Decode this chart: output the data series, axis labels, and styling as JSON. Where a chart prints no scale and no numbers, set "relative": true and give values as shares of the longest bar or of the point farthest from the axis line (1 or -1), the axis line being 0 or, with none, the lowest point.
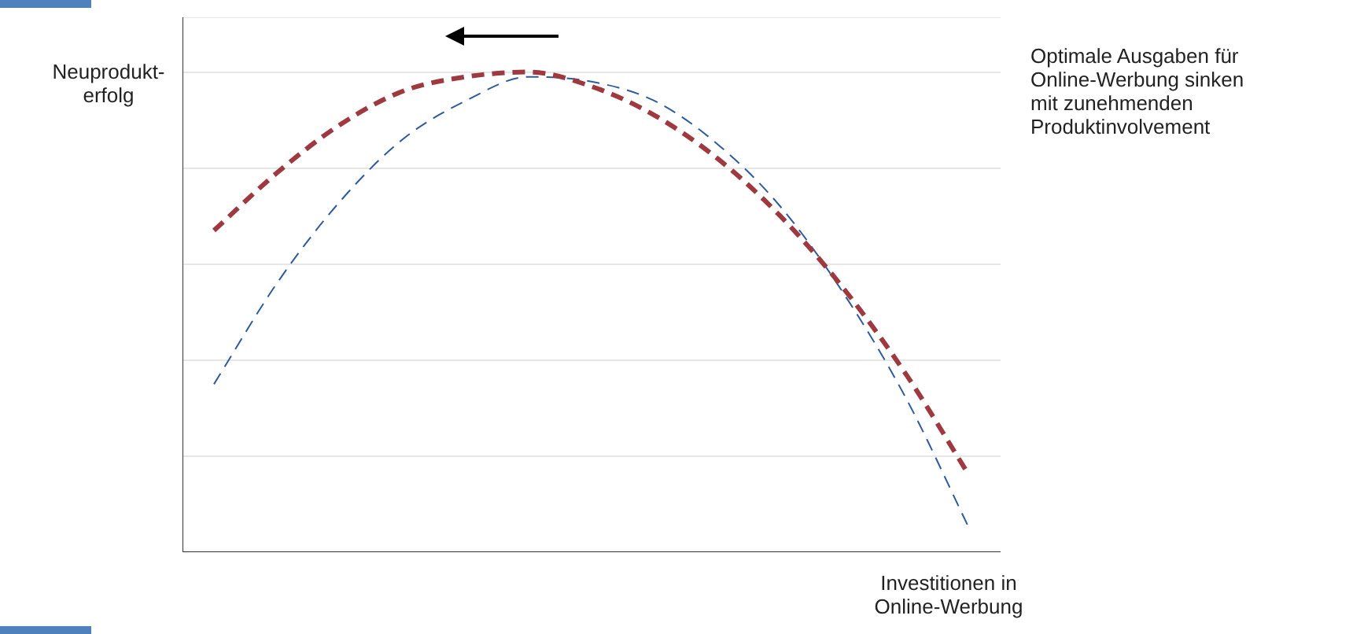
{
  "chart_data": {
    "type": "line",
    "relative": true,
    "xlabel": "Investitionen in Online-Werbung",
    "ylabel": "Neuprodukt-erfolg",
    "annotations": [
      "Optimale Ausgaben für Online-Werbung sinken mit zunehmenden Produktinvolvement"
    ],
    "categories": [
      null,
      null,
      null,
      null,
      null,
      null,
      null,
      null,
      null,
      null,
      null,
      null,
      null
    ],
    "series": [
      {
        "color": "#9e3a3f",
        "values": [
          0.67,
          0.79,
          0.89,
          0.96,
          0.99,
          1.0,
          0.97,
          0.91,
          0.82,
          0.7,
          0.55,
          0.37,
          0.16
        ]
      },
      {
        "color": "#2e5a9e",
        "values": [
          0.35,
          0.56,
          0.73,
          0.86,
          0.94,
          0.99,
          0.98,
          0.94,
          0.85,
          0.72,
          0.54,
          0.32,
          0.05
        ]
      }
    ],
    "grid": "y",
    "legend": false,
    "marker": "none",
    "line_style": "dashed"
  }
}
